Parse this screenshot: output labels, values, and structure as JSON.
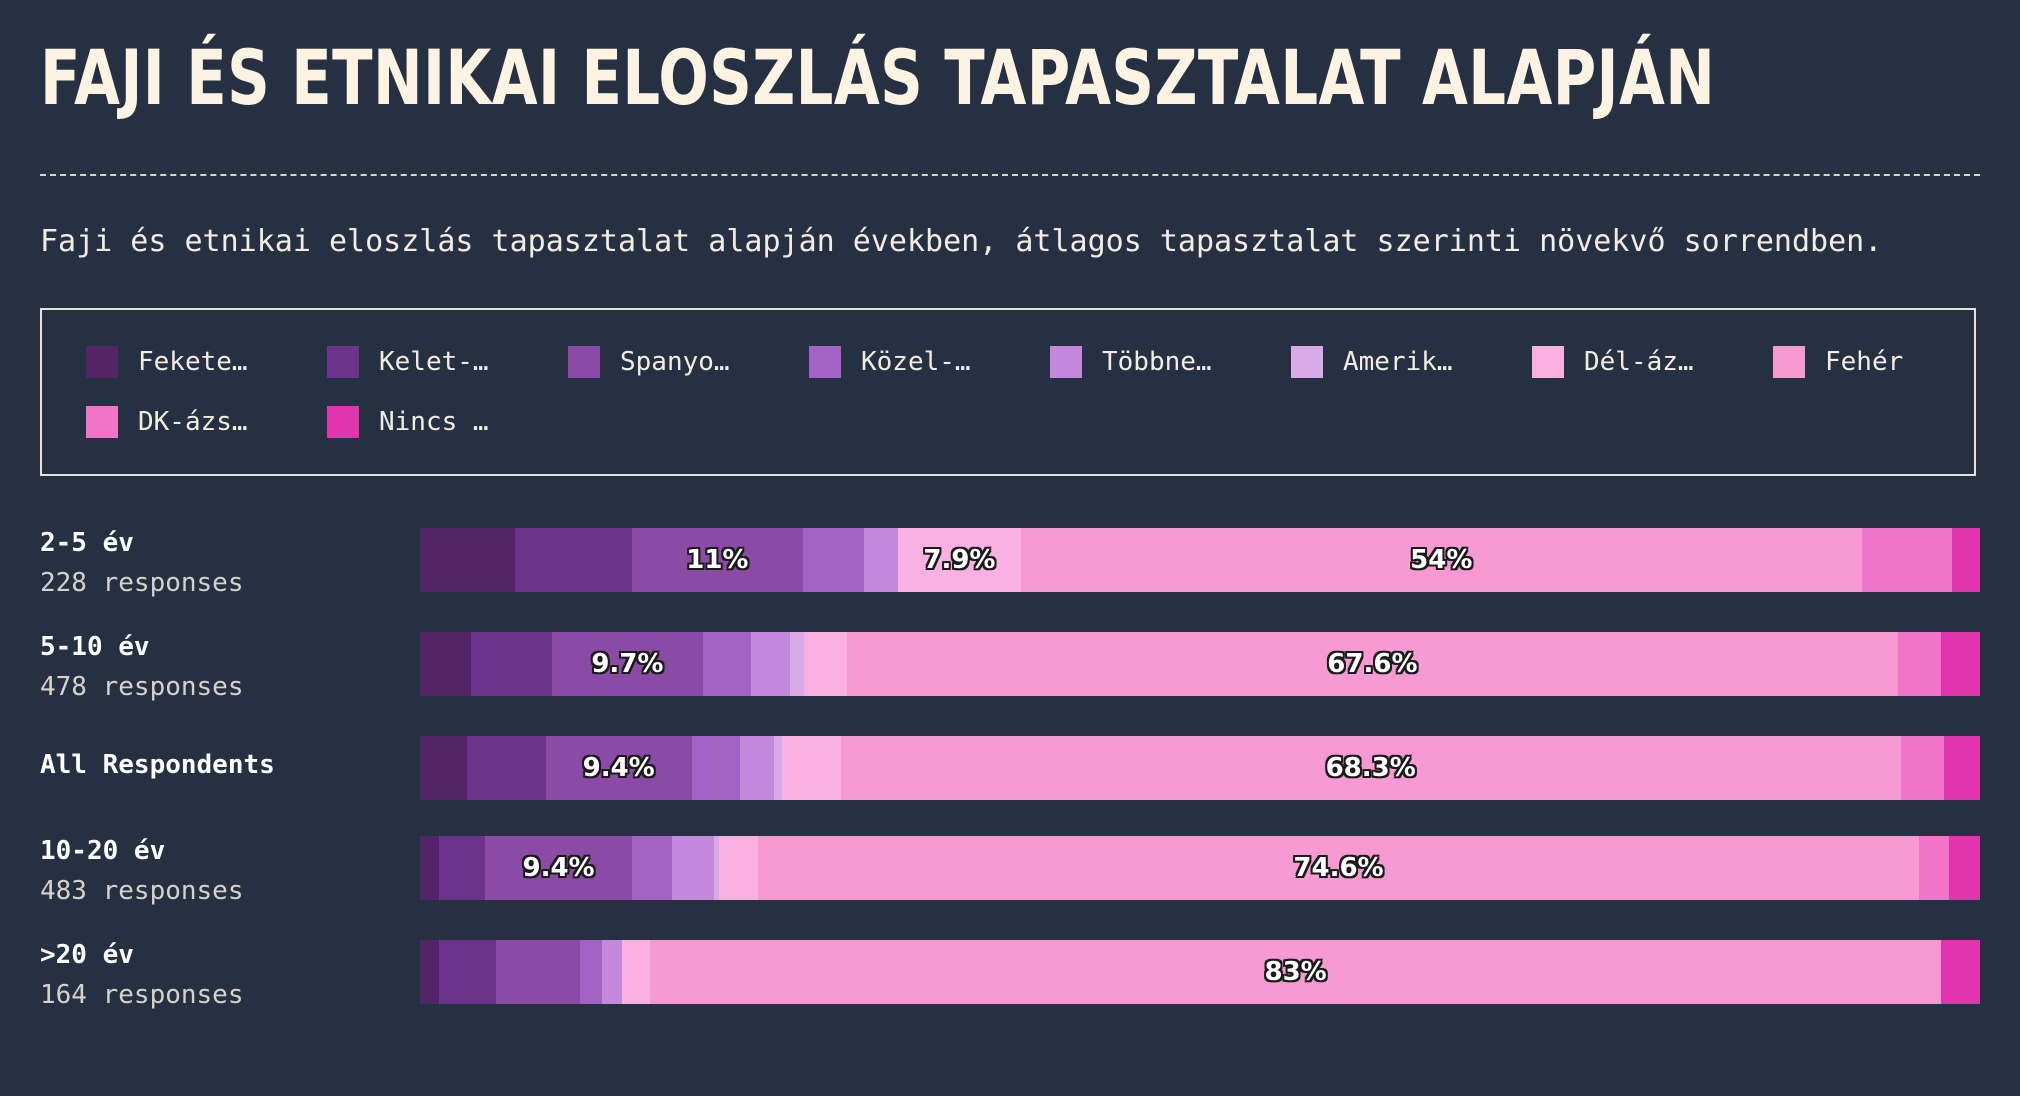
{
  "title": "FAJI ÉS ETNIKAI ELOSZLÁS TAPASZTALAT ALAPJÁN",
  "subtitle": "Faji és etnikai eloszlás tapasztalat alapján években, átlagos tapasztalat szerinti növekvő sorrendben.",
  "chart_data": {
    "type": "bar",
    "stacked": true,
    "orientation": "horizontal",
    "normalized_percent": true,
    "legend_position": "top",
    "categories": [
      {
        "name": "2-5 év",
        "count": "228 responses"
      },
      {
        "name": "5-10 év",
        "count": "478 responses"
      },
      {
        "name": "All Respondents",
        "count": ""
      },
      {
        "name": "10-20 év",
        "count": "483 responses"
      },
      {
        "name": ">20 év",
        "count": "164 responses"
      }
    ],
    "series": [
      {
        "name": "Fekete…",
        "color": "#542566",
        "values": [
          6.1,
          3.3,
          3.0,
          1.2,
          1.2
        ]
      },
      {
        "name": "Kelet-…",
        "color": "#6c338a",
        "values": [
          7.5,
          5.2,
          5.1,
          3.0,
          3.7
        ]
      },
      {
        "name": "Spanyo…",
        "color": "#8a4aa6",
        "values": [
          11,
          9.7,
          9.4,
          9.4,
          5.4
        ]
      },
      {
        "name": "Közel-…",
        "color": "#a463c4",
        "values": [
          3.9,
          3.1,
          3.1,
          2.6,
          1.4
        ]
      },
      {
        "name": "Többne…",
        "color": "#c388dc",
        "values": [
          2.2,
          2.5,
          2.2,
          2.7,
          1.3
        ]
      },
      {
        "name": "Amerik…",
        "color": "#d9aae8",
        "values": [
          0,
          0.9,
          0.5,
          0.3,
          0
        ]
      },
      {
        "name": "Dél-áz…",
        "color": "#f9b0e2",
        "values": [
          7.9,
          2.8,
          3.8,
          2.5,
          1.8
        ]
      },
      {
        "name": "Fehér",
        "color": "#f799d3",
        "values": [
          54,
          67.6,
          68.3,
          74.6,
          83
        ]
      },
      {
        "name": "DK-ázs…",
        "color": "#f174c8",
        "values": [
          5.8,
          2.8,
          2.8,
          1.9,
          0
        ]
      },
      {
        "name": "Nincs …",
        "color": "#e234ad",
        "values": [
          1.8,
          2.5,
          2.3,
          2.0,
          2.5
        ]
      }
    ],
    "data_labels": [
      {
        "row": 0,
        "series": 2,
        "text": "11%"
      },
      {
        "row": 0,
        "series": 6,
        "text": "7.9%"
      },
      {
        "row": 0,
        "series": 7,
        "text": "54%"
      },
      {
        "row": 1,
        "series": 2,
        "text": "9.7%"
      },
      {
        "row": 1,
        "series": 7,
        "text": "67.6%"
      },
      {
        "row": 2,
        "series": 2,
        "text": "9.4%"
      },
      {
        "row": 2,
        "series": 7,
        "text": "68.3%"
      },
      {
        "row": 3,
        "series": 2,
        "text": "9.4%"
      },
      {
        "row": 3,
        "series": 7,
        "text": "74.6%"
      },
      {
        "row": 4,
        "series": 7,
        "text": "83%"
      }
    ]
  }
}
